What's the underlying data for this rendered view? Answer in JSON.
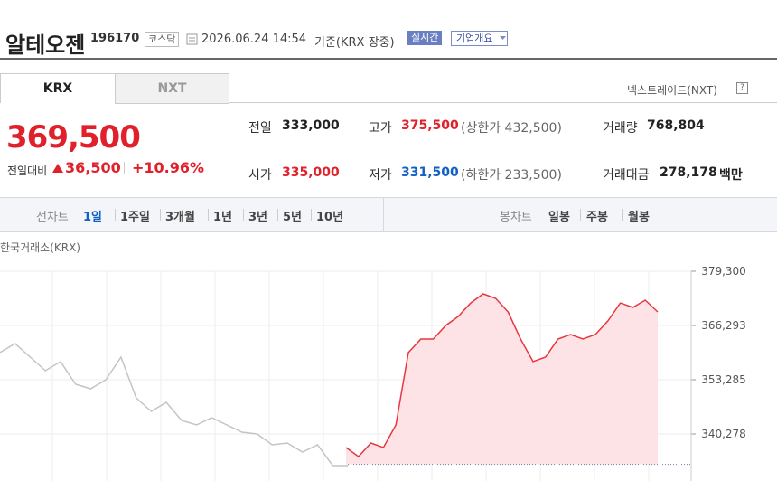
{
  "header": {
    "name": "알테오젠",
    "code": "196170",
    "market": "코스닥",
    "timestamp": "2026.06.24 14:54",
    "basis": "기준(KRX 장중)",
    "realtime": "실시간",
    "overview": "기업개요"
  },
  "tabs": [
    "KRX",
    "NXT"
  ],
  "nxt_link": "넥스트레이드(NXT)",
  "price": {
    "current": "369,500",
    "change_label": "전일대비",
    "change": "36,500",
    "rate": "+10.96%"
  },
  "stats": [
    {
      "label": "전일",
      "value": "333,000"
    },
    {
      "label": "고가",
      "value": "375,500",
      "limit": "(상한가 432,500)"
    },
    {
      "label": "거래량",
      "value": "768,804"
    },
    {
      "label": "시가",
      "value": "335,000"
    },
    {
      "label": "저가",
      "value": "331,500",
      "limit": "(하한가 233,500)"
    },
    {
      "label": "거래대금",
      "value": "278,178",
      "unit": "백만"
    }
  ],
  "toolbar": {
    "line_label": "선차트",
    "periods": [
      "1일",
      "1주일",
      "3개월",
      "1년",
      "3년",
      "5년",
      "10년"
    ],
    "candle_label": "봉차트",
    "candle_periods": [
      "일봉",
      "주봉",
      "월봉"
    ]
  },
  "chart_data": {
    "type": "line",
    "source": "한국거래소(KRX)",
    "ylim": [
      329005,
      379300
    ],
    "yticks": [
      {
        "value": 379300,
        "label": "379,300"
      },
      {
        "value": 366293,
        "label": "366,293"
      },
      {
        "value": 353285,
        "label": "353,285"
      },
      {
        "value": 340278,
        "label": "340,278"
      }
    ],
    "prev_close": 333000,
    "series": [
      {
        "color": "#c4c4c4",
        "values": [
          359800,
          361960,
          358700,
          355450,
          357620,
          352200,
          351120,
          353290,
          358700,
          348950,
          345700,
          347860,
          343530,
          342450,
          344180,
          342450,
          340710,
          340280,
          337680,
          338110,
          335940,
          337680,
          332690,
          332690
        ]
      },
      {
        "color": "#e8373e",
        "fill": "#fde3e6",
        "values": [
          337030,
          334860,
          338110,
          337030,
          342450,
          359790,
          363040,
          363040,
          366290,
          368450,
          371700,
          373870,
          372790,
          369540,
          363040,
          357620,
          358700,
          363040,
          364120,
          363040,
          364120,
          367370,
          371700,
          370620,
          372360,
          369540
        ]
      }
    ]
  }
}
